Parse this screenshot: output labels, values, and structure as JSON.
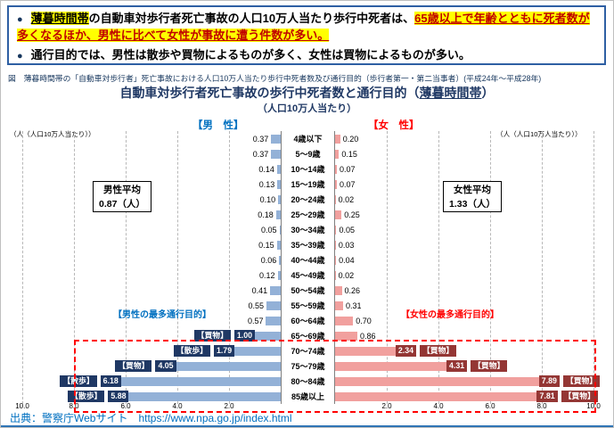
{
  "header_box": {
    "bullet": "●",
    "bullet1": {
      "p1": "薄暮時間帯",
      "p2": "の自動車対歩行者死亡事故の人口10万人当たり歩行中死者は、",
      "p3": "65歳以上で年齢とともに死者数が多くなるほか、男性に比べて女性が事故に遭う件数が多い。"
    },
    "bullet2": {
      "p1": "通行目的では、",
      "p2": "男性は散歩や買物によるものが多く、女性は買物によるものが多い。"
    }
  },
  "caption": "図　薄暮時間帯の「自動車対歩行者」死亡事故における人口10万人当たり歩行中死者数及び通行目的（歩行者第一・第二当事者）(平成24年～平成28年)",
  "chart": {
    "title_pre": "自動車対歩行者死亡事故の歩行中死者数と通行目的（",
    "title_em": "薄暮時間帯",
    "title_post": "）",
    "subtitle": "（人口10万人当たり）",
    "legend_male": "【男　性】",
    "legend_female": "【女　性】",
    "unit_left": "（人（人口10万人当たり））",
    "unit_right": "（人（人口10万人当たり））",
    "male_avg_line1": "男性平均",
    "male_avg_line2": "0.87（人）",
    "female_avg_line1": "女性平均",
    "female_avg_line2": "1.33（人）",
    "purpose_header_male": "【男性の最多通行目的】",
    "purpose_header_female": "【女性の最多通行目的】"
  },
  "chart_data": {
    "type": "bar",
    "variant": "population-pyramid",
    "title": "自動車対歩行者死亡事故の歩行中死者数と通行目的（薄暮時間帯）",
    "subtitle": "（人口10万人当たり）",
    "unit": "人（人口10万人当たり）",
    "xlim": [
      0,
      10
    ],
    "grid": true,
    "categories": [
      "4歳以下",
      "5～9歳",
      "10～14歳",
      "15～19歳",
      "20～24歳",
      "25～29歳",
      "30～34歳",
      "35～39歳",
      "40～44歳",
      "45～49歳",
      "50～54歳",
      "55～59歳",
      "60～64歳",
      "65～69歳",
      "70～74歳",
      "75～79歳",
      "80～84歳",
      "85歳以上"
    ],
    "series": [
      {
        "name": "男性",
        "side": "left",
        "color": "#93b1d7",
        "values": [
          0.37,
          0.37,
          0.14,
          0.13,
          0.1,
          0.18,
          0.05,
          0.15,
          0.06,
          0.12,
          0.41,
          0.55,
          0.57,
          1.0,
          1.79,
          4.05,
          6.18,
          5.88
        ]
      },
      {
        "name": "女性",
        "side": "right",
        "color": "#f1a09e",
        "values": [
          0.2,
          0.15,
          0.07,
          0.07,
          0.02,
          0.25,
          0.05,
          0.03,
          0.04,
          0.02,
          0.26,
          0.31,
          0.7,
          0.86,
          2.34,
          4.31,
          7.89,
          7.81
        ]
      }
    ],
    "male_average": 0.87,
    "female_average": 1.33,
    "rows": [
      {
        "age": "4歳以下",
        "male": "0.37",
        "female": "0.20"
      },
      {
        "age": "5～9歳",
        "male": "0.37",
        "female": "0.15"
      },
      {
        "age": "10～14歳",
        "male": "0.14",
        "female": "0.07"
      },
      {
        "age": "15～19歳",
        "male": "0.13",
        "female": "0.07"
      },
      {
        "age": "20～24歳",
        "male": "0.10",
        "female": "0.02"
      },
      {
        "age": "25～29歳",
        "male": "0.18",
        "female": "0.25"
      },
      {
        "age": "30～34歳",
        "male": "0.05",
        "female": "0.05"
      },
      {
        "age": "35～39歳",
        "male": "0.15",
        "female": "0.03"
      },
      {
        "age": "40～44歳",
        "male": "0.06",
        "female": "0.04"
      },
      {
        "age": "45～49歳",
        "male": "0.12",
        "female": "0.02"
      },
      {
        "age": "50～54歳",
        "male": "0.41",
        "female": "0.26"
      },
      {
        "age": "55～59歳",
        "male": "0.55",
        "female": "0.31"
      },
      {
        "age": "60～64歳",
        "male": "0.57",
        "female": "0.70"
      },
      {
        "age": "65～69歳",
        "male": "1.00",
        "female": "0.86",
        "male_purpose": "【買物】"
      },
      {
        "age": "70～74歳",
        "male": "1.79",
        "female": "2.34",
        "male_purpose": "【散歩】",
        "female_purpose": "【買物】"
      },
      {
        "age": "75～79歳",
        "male": "4.05",
        "female": "4.31",
        "male_purpose": "【買物】",
        "female_purpose": "【買物】"
      },
      {
        "age": "80～84歳",
        "male": "6.18",
        "female": "7.89",
        "male_purpose": "【散歩】",
        "female_purpose": "【買物】"
      },
      {
        "age": "85歳以上",
        "male": "5.88",
        "female": "7.81",
        "male_purpose": "【散歩】",
        "female_purpose": "【買物】"
      }
    ],
    "axis": {
      "left_labels": [
        "10.0",
        "8.0",
        "6.0",
        "4.0",
        "2.0"
      ],
      "right_labels": [
        "2.0",
        "4.0",
        "6.0",
        "8.0",
        "10.0"
      ]
    },
    "colors": {
      "male_bar": "#93b1d7",
      "female_bar": "#f1a09e",
      "male_chip": "#1f3864",
      "female_chip": "#943634",
      "male_accent": "#0070c0",
      "female_accent": "#ff0000",
      "title": "#1f3864",
      "highlight": "#ffff00",
      "dashed_box": "#ff0000"
    }
  },
  "source": "出典：警察庁Webサイト　https://www.npa.go.jp/index.html"
}
